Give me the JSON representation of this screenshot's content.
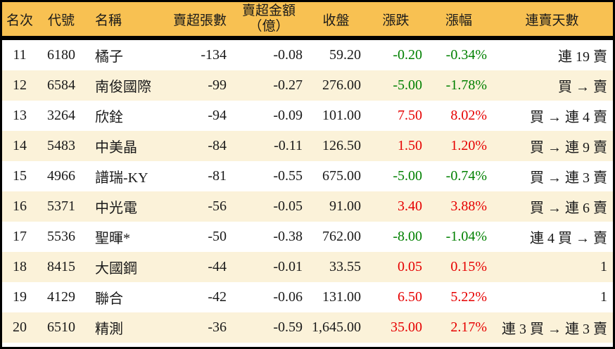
{
  "colors": {
    "header_bg": "#F8C152",
    "row_alt_bg": "#FBF2D9",
    "row_bg": "#FFFFFF",
    "border": "#000000",
    "text": "#1A1A1A",
    "up_red": "#E60000",
    "down_green": "#008000"
  },
  "table": {
    "columns": {
      "rank": {
        "label": "名次"
      },
      "code": {
        "label": "代號"
      },
      "name": {
        "label": "名稱"
      },
      "shares": {
        "label": "賣超張數"
      },
      "amount": {
        "label": "賣超金額",
        "label_line2": "（億）"
      },
      "close": {
        "label": "收盤"
      },
      "change": {
        "label": "漲跌"
      },
      "pct": {
        "label": "漲幅"
      },
      "streak": {
        "label": "連賣天數"
      }
    },
    "rows": [
      {
        "rank": "11",
        "code": "6180",
        "name": "橘子",
        "shares": "-134",
        "amount": "-0.08",
        "close": "59.20",
        "change": "-0.20",
        "pct": "-0.34%",
        "streak": "連 19 賣",
        "trend": "down"
      },
      {
        "rank": "12",
        "code": "6584",
        "name": "南俊國際",
        "shares": "-99",
        "amount": "-0.27",
        "close": "276.00",
        "change": "-5.00",
        "pct": "-1.78%",
        "streak": "買 → 賣",
        "trend": "down"
      },
      {
        "rank": "13",
        "code": "3264",
        "name": "欣銓",
        "shares": "-94",
        "amount": "-0.09",
        "close": "101.00",
        "change": "7.50",
        "pct": "8.02%",
        "streak": "買 → 連 4 賣",
        "trend": "up"
      },
      {
        "rank": "14",
        "code": "5483",
        "name": "中美晶",
        "shares": "-84",
        "amount": "-0.11",
        "close": "126.50",
        "change": "1.50",
        "pct": "1.20%",
        "streak": "買 → 連 9 賣",
        "trend": "up"
      },
      {
        "rank": "15",
        "code": "4966",
        "name": "譜瑞-KY",
        "shares": "-81",
        "amount": "-0.55",
        "close": "675.00",
        "change": "-5.00",
        "pct": "-0.74%",
        "streak": "買 → 連 3 賣",
        "trend": "down"
      },
      {
        "rank": "16",
        "code": "5371",
        "name": "中光電",
        "shares": "-56",
        "amount": "-0.05",
        "close": "91.00",
        "change": "3.40",
        "pct": "3.88%",
        "streak": "買 → 連 6 賣",
        "trend": "up"
      },
      {
        "rank": "17",
        "code": "5536",
        "name": "聖暉*",
        "shares": "-50",
        "amount": "-0.38",
        "close": "762.00",
        "change": "-8.00",
        "pct": "-1.04%",
        "streak": "連 4 買 → 賣",
        "trend": "down"
      },
      {
        "rank": "18",
        "code": "8415",
        "name": "大國鋼",
        "shares": "-44",
        "amount": "-0.01",
        "close": "33.55",
        "change": "0.05",
        "pct": "0.15%",
        "streak": "1",
        "trend": "up"
      },
      {
        "rank": "19",
        "code": "4129",
        "name": "聯合",
        "shares": "-42",
        "amount": "-0.06",
        "close": "131.00",
        "change": "6.50",
        "pct": "5.22%",
        "streak": "1",
        "trend": "up"
      },
      {
        "rank": "20",
        "code": "6510",
        "name": "精測",
        "shares": "-36",
        "amount": "-0.59",
        "close": "1,645.00",
        "change": "35.00",
        "pct": "2.17%",
        "streak": "連 3 買 → 連 3 賣",
        "trend": "up"
      }
    ]
  }
}
